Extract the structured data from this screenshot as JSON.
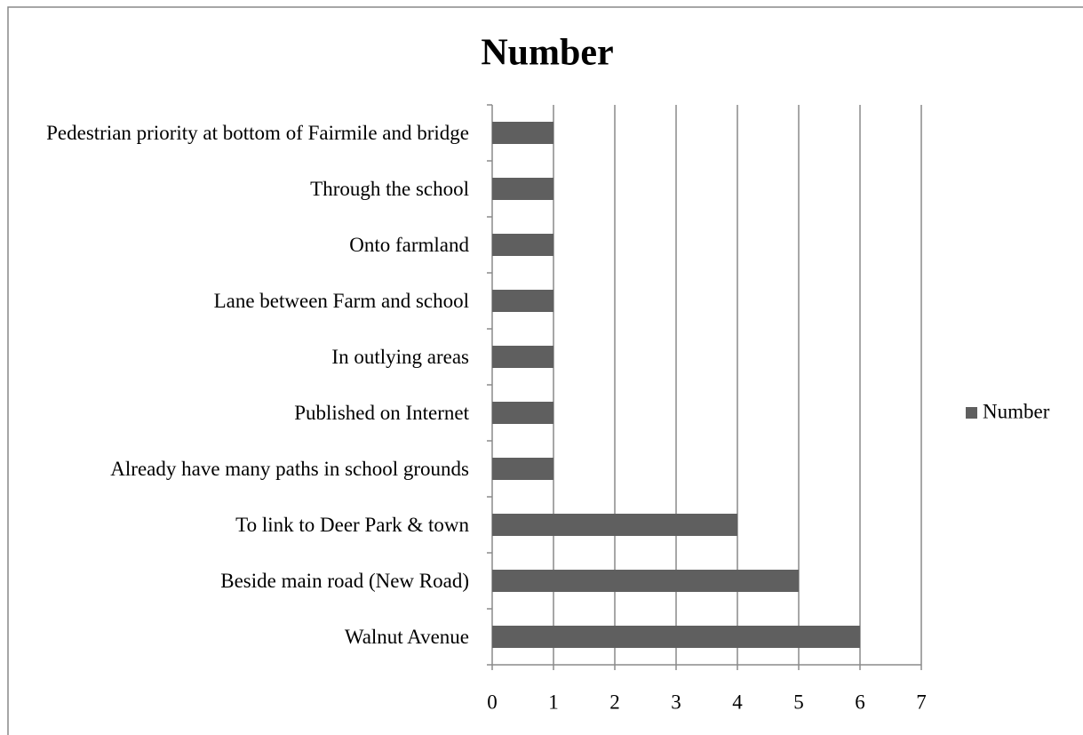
{
  "chart_data": {
    "type": "bar",
    "orientation": "horizontal",
    "title": "Number",
    "categories": [
      "Pedestrian priority at bottom  of Fairmile and bridge",
      "Through the school",
      "Onto farmland",
      "Lane between Farm and school",
      "In outlying areas",
      "Published on Internet",
      "Already have many paths in school grounds",
      "To link to Deer Park & town",
      "Beside main road (New Road)",
      "Walnut Avenue"
    ],
    "series": [
      {
        "name": "Number",
        "color": "#5f5f5f",
        "values": [
          1,
          1,
          1,
          1,
          1,
          1,
          1,
          4,
          5,
          6
        ]
      }
    ],
    "xlim": [
      0,
      7
    ],
    "xticks": [
      0,
      1,
      2,
      3,
      4,
      5,
      6,
      7
    ],
    "grid": true,
    "legend": "right"
  }
}
